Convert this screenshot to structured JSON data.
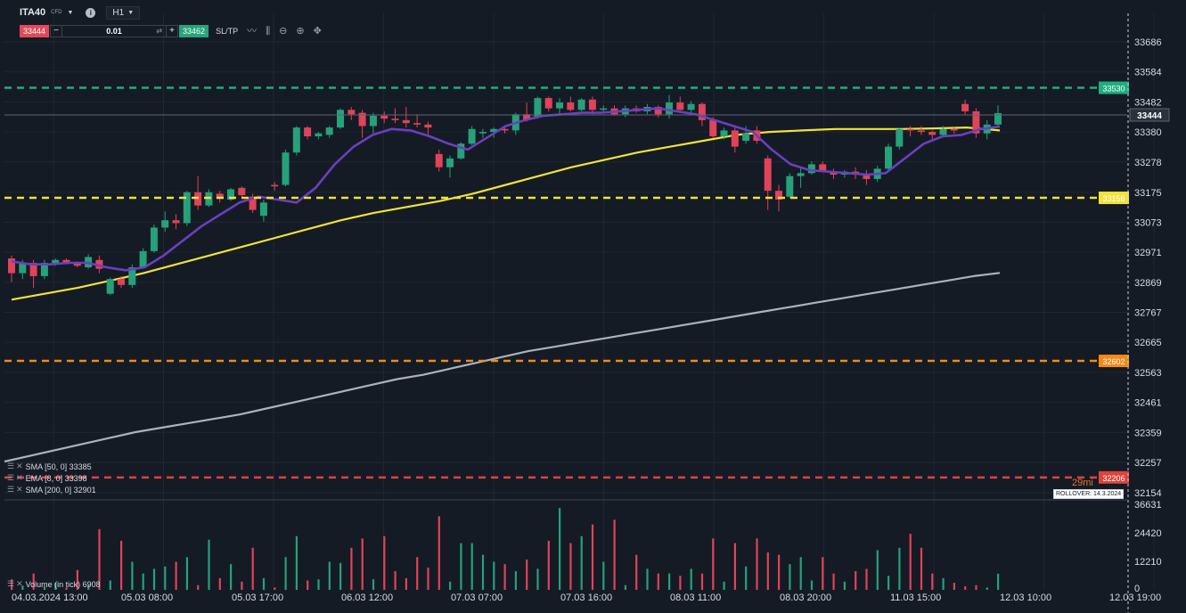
{
  "toolbar": {
    "symbol": "ITA40",
    "instrument_type": "CFD",
    "timeframe": "H1",
    "sell_price": "33444",
    "quantity": "0.01",
    "buy_price": "33462",
    "sltp_label": "SL/TP",
    "tools": [
      "chart-type-icon",
      "indicators-icon",
      "zoom-out-icon",
      "zoom-in-icon",
      "crosshair-icon"
    ]
  },
  "price_axis": {
    "ticks": [
      "33686",
      "33584",
      "33482",
      "33380",
      "33278",
      "33175",
      "33073",
      "32971",
      "32869",
      "32767",
      "32665",
      "32563",
      "32461",
      "32359",
      "32257",
      "32154"
    ],
    "tick_values": [
      33686,
      33584,
      33482,
      33380,
      33278,
      33175,
      33073,
      32971,
      32869,
      32767,
      32665,
      32563,
      32461,
      32359,
      32257,
      32154
    ],
    "current_price": "33444",
    "level_labels": [
      "33530",
      "33156",
      "32602",
      "32206"
    ]
  },
  "levels": [
    {
      "name": "tp-level",
      "value": 33530,
      "label": "33530",
      "color": "#1fae7f"
    },
    {
      "name": "entry-level",
      "value": 33156,
      "label": "33156",
      "color": "#f2e23a"
    },
    {
      "name": "alert-level",
      "value": 32602,
      "label": "32602",
      "color": "#f28a17"
    },
    {
      "name": "stop-level",
      "value": 32206,
      "label": "32206",
      "color": "#e0433f"
    }
  ],
  "indicators": [
    {
      "label": "SMA [50, 0] 33385",
      "color": "#f2e23a"
    },
    {
      "label": "EMA [8, 0] 33398",
      "color": "#6b3fbf"
    },
    {
      "label": "SMA [200, 0] 32901",
      "color": "#aab3bd"
    }
  ],
  "volume": {
    "label": "Volume (in tick) 6908",
    "ticks": [
      "36631",
      "24420",
      "12210",
      "0"
    ]
  },
  "time_axis": [
    "04.03.2024 13:00",
    "05.03 08:00",
    "05.03 17:00",
    "06.03 12:00",
    "07.03 07:00",
    "07.03 16:00",
    "08.03 11:00",
    "08.03 20:00",
    "11.03 15:00",
    "12.03 10:00",
    "12.03 19:00"
  ],
  "countdown": "29mi",
  "rollover": "ROLLOVER: 14.3.2024",
  "colors": {
    "up": "#26a17b",
    "down": "#e0435a",
    "background": "#151b24",
    "ema": "#6b3fbf",
    "sma50": "#f2e23a",
    "sma200": "#aab3bd"
  },
  "chart_data": {
    "type": "candlestick",
    "price_range": [
      32154,
      33686
    ],
    "volume_range": [
      0,
      36631
    ],
    "candles": [
      {
        "o": 32950,
        "h": 32960,
        "l": 32870,
        "c": 32900
      },
      {
        "o": 32900,
        "h": 32945,
        "l": 32880,
        "c": 32935
      },
      {
        "o": 32935,
        "h": 32945,
        "l": 32850,
        "c": 32890
      },
      {
        "o": 32890,
        "h": 32945,
        "l": 32880,
        "c": 32935
      },
      {
        "o": 32935,
        "h": 32950,
        "l": 32925,
        "c": 32945
      },
      {
        "o": 32945,
        "h": 32950,
        "l": 32930,
        "c": 32935
      },
      {
        "o": 32935,
        "h": 32940,
        "l": 32920,
        "c": 32925
      },
      {
        "o": 32920,
        "h": 32965,
        "l": 32915,
        "c": 32955
      },
      {
        "o": 32945,
        "h": 32960,
        "l": 32900,
        "c": 32915
      },
      {
        "o": 32830,
        "h": 32885,
        "l": 32825,
        "c": 32880
      },
      {
        "o": 32880,
        "h": 32890,
        "l": 32850,
        "c": 32860
      },
      {
        "o": 32860,
        "h": 32930,
        "l": 32850,
        "c": 32920
      },
      {
        "o": 32920,
        "h": 32985,
        "l": 32915,
        "c": 32975
      },
      {
        "o": 32975,
        "h": 33065,
        "l": 32970,
        "c": 33055
      },
      {
        "o": 33055,
        "h": 33110,
        "l": 33040,
        "c": 33080
      },
      {
        "o": 33080,
        "h": 33100,
        "l": 33050,
        "c": 33070
      },
      {
        "o": 33070,
        "h": 33180,
        "l": 33060,
        "c": 33175
      },
      {
        "o": 33175,
        "h": 33230,
        "l": 33115,
        "c": 33130
      },
      {
        "o": 33130,
        "h": 33185,
        "l": 33125,
        "c": 33175
      },
      {
        "o": 33170,
        "h": 33180,
        "l": 33140,
        "c": 33155
      },
      {
        "o": 33150,
        "h": 33190,
        "l": 33145,
        "c": 33185
      },
      {
        "o": 33190,
        "h": 33195,
        "l": 33160,
        "c": 33165
      },
      {
        "o": 33160,
        "h": 33170,
        "l": 33105,
        "c": 33115
      },
      {
        "o": 33095,
        "h": 33150,
        "l": 33075,
        "c": 33140
      },
      {
        "o": 33200,
        "h": 33210,
        "l": 33180,
        "c": 33195
      },
      {
        "o": 33200,
        "h": 33320,
        "l": 33195,
        "c": 33310
      },
      {
        "o": 33310,
        "h": 33400,
        "l": 33300,
        "c": 33395
      },
      {
        "o": 33395,
        "h": 33400,
        "l": 33355,
        "c": 33365
      },
      {
        "o": 33365,
        "h": 33380,
        "l": 33355,
        "c": 33375
      },
      {
        "o": 33370,
        "h": 33400,
        "l": 33360,
        "c": 33395
      },
      {
        "o": 33395,
        "h": 33460,
        "l": 33390,
        "c": 33455
      },
      {
        "o": 33455,
        "h": 33465,
        "l": 33420,
        "c": 33440
      },
      {
        "o": 33445,
        "h": 33455,
        "l": 33360,
        "c": 33400
      },
      {
        "o": 33400,
        "h": 33445,
        "l": 33375,
        "c": 33435
      },
      {
        "o": 33435,
        "h": 33450,
        "l": 33410,
        "c": 33425
      },
      {
        "o": 33425,
        "h": 33460,
        "l": 33410,
        "c": 33420
      },
      {
        "o": 33420,
        "h": 33465,
        "l": 33395,
        "c": 33410
      },
      {
        "o": 33410,
        "h": 33440,
        "l": 33395,
        "c": 33405
      },
      {
        "o": 33405,
        "h": 33415,
        "l": 33370,
        "c": 33395
      },
      {
        "o": 33305,
        "h": 33320,
        "l": 33245,
        "c": 33260
      },
      {
        "o": 33260,
        "h": 33300,
        "l": 33225,
        "c": 33290
      },
      {
        "o": 33290,
        "h": 33345,
        "l": 33285,
        "c": 33340
      },
      {
        "o": 33340,
        "h": 33400,
        "l": 33335,
        "c": 33390
      },
      {
        "o": 33375,
        "h": 33390,
        "l": 33360,
        "c": 33380
      },
      {
        "o": 33380,
        "h": 33395,
        "l": 33360,
        "c": 33390
      },
      {
        "o": 33390,
        "h": 33395,
        "l": 33375,
        "c": 33385
      },
      {
        "o": 33385,
        "h": 33445,
        "l": 33370,
        "c": 33440
      },
      {
        "o": 33440,
        "h": 33480,
        "l": 33415,
        "c": 33420
      },
      {
        "o": 33430,
        "h": 33500,
        "l": 33425,
        "c": 33495
      },
      {
        "o": 33495,
        "h": 33500,
        "l": 33450,
        "c": 33460
      },
      {
        "o": 33460,
        "h": 33495,
        "l": 33440,
        "c": 33480
      },
      {
        "o": 33480,
        "h": 33500,
        "l": 33450,
        "c": 33455
      },
      {
        "o": 33455,
        "h": 33495,
        "l": 33450,
        "c": 33490
      },
      {
        "o": 33490,
        "h": 33500,
        "l": 33440,
        "c": 33455
      },
      {
        "o": 33455,
        "h": 33470,
        "l": 33445,
        "c": 33460
      },
      {
        "o": 33460,
        "h": 33470,
        "l": 33435,
        "c": 33440
      },
      {
        "o": 33440,
        "h": 33470,
        "l": 33430,
        "c": 33460
      },
      {
        "o": 33460,
        "h": 33470,
        "l": 33445,
        "c": 33450
      },
      {
        "o": 33450,
        "h": 33475,
        "l": 33440,
        "c": 33465
      },
      {
        "o": 33465,
        "h": 33470,
        "l": 33430,
        "c": 33440
      },
      {
        "o": 33440,
        "h": 33505,
        "l": 33425,
        "c": 33480
      },
      {
        "o": 33480,
        "h": 33500,
        "l": 33450,
        "c": 33455
      },
      {
        "o": 33455,
        "h": 33485,
        "l": 33445,
        "c": 33475
      },
      {
        "o": 33475,
        "h": 33480,
        "l": 33400,
        "c": 33420
      },
      {
        "o": 33420,
        "h": 33430,
        "l": 33360,
        "c": 33365
      },
      {
        "o": 33365,
        "h": 33395,
        "l": 33355,
        "c": 33385
      },
      {
        "o": 33385,
        "h": 33400,
        "l": 33310,
        "c": 33330
      },
      {
        "o": 33350,
        "h": 33400,
        "l": 33340,
        "c": 33375
      },
      {
        "o": 33385,
        "h": 33400,
        "l": 33340,
        "c": 33350
      },
      {
        "o": 33290,
        "h": 33300,
        "l": 33115,
        "c": 33180
      },
      {
        "o": 33180,
        "h": 33200,
        "l": 33110,
        "c": 33150
      },
      {
        "o": 33160,
        "h": 33240,
        "l": 33155,
        "c": 33230
      },
      {
        "o": 33230,
        "h": 33260,
        "l": 33190,
        "c": 33240
      },
      {
        "o": 33240,
        "h": 33280,
        "l": 33235,
        "c": 33270
      },
      {
        "o": 33270,
        "h": 33280,
        "l": 33250,
        "c": 33245
      },
      {
        "o": 33245,
        "h": 33255,
        "l": 33220,
        "c": 33235
      },
      {
        "o": 33235,
        "h": 33250,
        "l": 33225,
        "c": 33245
      },
      {
        "o": 33245,
        "h": 33260,
        "l": 33220,
        "c": 33235
      },
      {
        "o": 33235,
        "h": 33250,
        "l": 33200,
        "c": 33220
      },
      {
        "o": 33220,
        "h": 33265,
        "l": 33210,
        "c": 33255
      },
      {
        "o": 33255,
        "h": 33340,
        "l": 33250,
        "c": 33330
      },
      {
        "o": 33330,
        "h": 33395,
        "l": 33320,
        "c": 33390
      },
      {
        "o": 33390,
        "h": 33400,
        "l": 33365,
        "c": 33385
      },
      {
        "o": 33385,
        "h": 33400,
        "l": 33370,
        "c": 33380
      },
      {
        "o": 33380,
        "h": 33385,
        "l": 33355,
        "c": 33370
      },
      {
        "o": 33370,
        "h": 33400,
        "l": 33365,
        "c": 33390
      },
      {
        "o": 33390,
        "h": 33395,
        "l": 33375,
        "c": 33385
      },
      {
        "o": 33475,
        "h": 33490,
        "l": 33440,
        "c": 33450
      },
      {
        "o": 33450,
        "h": 33460,
        "l": 33360,
        "c": 33375
      },
      {
        "o": 33375,
        "h": 33420,
        "l": 33355,
        "c": 33405
      },
      {
        "o": 33405,
        "h": 33470,
        "l": 33400,
        "c": 33444
      }
    ],
    "volumes": [
      4500,
      1800,
      7000,
      1200,
      3000,
      1000,
      8500,
      2000,
      26000,
      4000,
      21000,
      12000,
      7000,
      9000,
      10000,
      12000,
      14000,
      2000,
      21500,
      5000,
      11000,
      3500,
      18000,
      5000,
      1000,
      14000,
      23000,
      4000,
      4500,
      12000,
      11500,
      18000,
      22000,
      4500,
      23000,
      8000,
      5000,
      14000,
      9500,
      31500,
      3500,
      20000,
      20000,
      15000,
      12000,
      11000,
      8000,
      13000,
      9000,
      21000,
      35000,
      20000,
      23000,
      28000,
      12000,
      30000,
      2000,
      15000,
      9000,
      7000,
      7000,
      6000,
      9000,
      7000,
      22000,
      3500,
      20000,
      10000,
      22000,
      16000,
      15000,
      11000,
      14000,
      4000,
      14000,
      7000,
      3500,
      8000,
      9000,
      17000,
      6000,
      18000,
      24000,
      18000,
      7000,
      5000,
      3000,
      1500,
      2000,
      1000,
      6908
    ],
    "sma200": [
      32260,
      32280,
      32300,
      32320,
      32340,
      32360,
      32375,
      32390,
      32405,
      32420,
      32440,
      32460,
      32480,
      32500,
      32520,
      32540,
      32555,
      32575,
      32595,
      32615,
      32635,
      32650,
      32665,
      32680,
      32695,
      32710,
      32725,
      32740,
      32755,
      32770,
      32785,
      32800,
      32815,
      32830,
      32845,
      32860,
      32875,
      32890,
      32901
    ],
    "sma50": [
      32810,
      32830,
      32850,
      32875,
      32900,
      32930,
      32960,
      32990,
      33020,
      33050,
      33080,
      33105,
      33125,
      33145,
      33170,
      33200,
      33230,
      33260,
      33285,
      33310,
      33330,
      33350,
      33370,
      33380,
      33385,
      33390,
      33390,
      33390,
      33392,
      33395,
      33385
    ],
    "ema8": [
      32940,
      32930,
      32930,
      32935,
      32935,
      32920,
      32910,
      32920,
      32960,
      33010,
      33060,
      33100,
      33140,
      33160,
      33150,
      33140,
      33190,
      33270,
      33330,
      33370,
      33390,
      33385,
      33365,
      33340,
      33320,
      33360,
      33400,
      33420,
      33435,
      33440,
      33445,
      33445,
      33450,
      33455,
      33460,
      33450,
      33440,
      33420,
      33400,
      33380,
      33320,
      33270,
      33250,
      33245,
      33240,
      33235,
      33240,
      33290,
      33340,
      33365,
      33370,
      33390,
      33398
    ]
  }
}
